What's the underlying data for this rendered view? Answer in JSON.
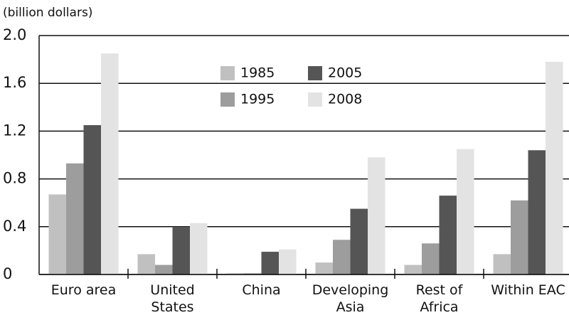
{
  "chart_data": {
    "type": "bar",
    "y_label": "(billion dollars)",
    "categories": [
      "Euro area",
      "United\nStates",
      "China",
      "Developing\nAsia",
      "Rest of\nAfrica",
      "Within EAC"
    ],
    "series": [
      {
        "name": "1985",
        "color": "#c0c0c0",
        "values": [
          0.67,
          0.17,
          0.01,
          0.1,
          0.08,
          0.17
        ]
      },
      {
        "name": "1995",
        "color": "#9d9d9d",
        "values": [
          0.93,
          0.08,
          0.01,
          0.29,
          0.26,
          0.62
        ]
      },
      {
        "name": "2005",
        "color": "#555555",
        "values": [
          1.25,
          0.4,
          0.19,
          0.55,
          0.66,
          1.04
        ]
      },
      {
        "name": "2008",
        "color": "#e3e3e3",
        "values": [
          1.85,
          0.43,
          0.21,
          0.98,
          1.05,
          1.78
        ]
      }
    ],
    "ylim": [
      0,
      2
    ],
    "yticks": [
      0,
      0.4,
      0.8,
      1.2,
      1.6,
      {
        "value": 2,
        "label": "2.0"
      }
    ],
    "grid": true
  }
}
